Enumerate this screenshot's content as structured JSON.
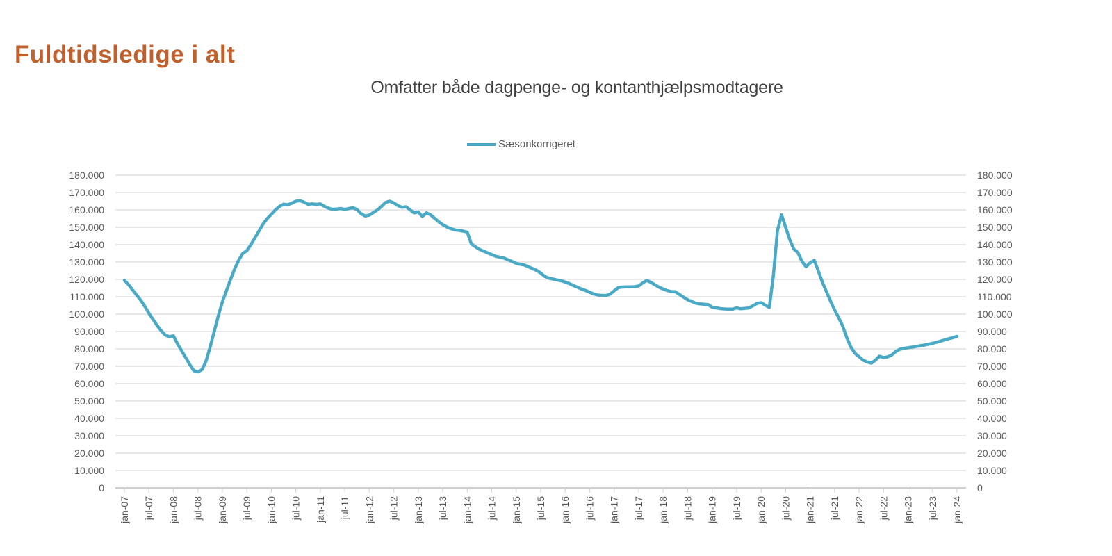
{
  "page": {
    "title": "Fuldtidsledige i alt"
  },
  "colors": {
    "title": "#C2602C",
    "subtitle": "#404040",
    "legend_text": "#595959",
    "axis_text": "#595959",
    "gridline": "#D9D9D9",
    "baseline": "#BFBFBF",
    "series_line": "#4AA9C5"
  },
  "chart_data": {
    "type": "line",
    "title": "Omfatter både dagpenge- og kontanthjælpsmodtagere",
    "legend_position": "top",
    "grid": true,
    "ylim": [
      0,
      180000
    ],
    "y_tick_step": 10000,
    "y_tick_labels": [
      "0",
      "10.000",
      "20.000",
      "30.000",
      "40.000",
      "50.000",
      "60.000",
      "70.000",
      "80.000",
      "90.000",
      "100.000",
      "110.000",
      "120.000",
      "130.000",
      "140.000",
      "150.000",
      "160.000",
      "170.000",
      "180.000"
    ],
    "x_tick_every_months": 6,
    "x_tick_labels": [
      "jan-07",
      "jul-07",
      "jan-08",
      "jul-08",
      "jan-09",
      "jul-09",
      "jan-10",
      "jul-10",
      "jan-11",
      "jul-11",
      "jan-12",
      "jul-12",
      "jan-13",
      "jul-13",
      "jan-14",
      "jul-14",
      "jan-15",
      "jul-15",
      "jan-16",
      "jul-16",
      "jan-17",
      "jul-17",
      "jan-18",
      "jul-18",
      "jan-19",
      "jul-19",
      "jan-20",
      "jul-20",
      "jan-21",
      "jul-21",
      "jan-22",
      "jul-22",
      "jan-23",
      "jul-23",
      "jan-24"
    ],
    "series": [
      {
        "name": "Sæsonkorrigeret",
        "color": "#4AA9C5",
        "x_start": "jan-07",
        "x_step": "1 month",
        "values": [
          119500,
          117000,
          114000,
          111000,
          108000,
          104500,
          100500,
          97000,
          93500,
          90500,
          88000,
          87000,
          87500,
          83000,
          79000,
          75000,
          71000,
          67500,
          66800,
          68000,
          73000,
          81000,
          90000,
          99000,
          107000,
          113500,
          120000,
          126000,
          131000,
          135000,
          136500,
          140000,
          144000,
          148000,
          152000,
          155000,
          157500,
          160000,
          162000,
          163300,
          163000,
          163800,
          165000,
          165300,
          164500,
          163200,
          163500,
          163200,
          163500,
          162000,
          161000,
          160300,
          160500,
          160800,
          160300,
          160800,
          161200,
          160200,
          157800,
          156500,
          157000,
          158500,
          160000,
          162000,
          164300,
          165000,
          164000,
          162500,
          161500,
          161800,
          160000,
          158200,
          158800,
          156200,
          158300,
          157200,
          155200,
          153200,
          151500,
          150200,
          149200,
          148500,
          148200,
          147800,
          147200,
          140500,
          138800,
          137300,
          136300,
          135300,
          134300,
          133300,
          132800,
          132300,
          131300,
          130300,
          129200,
          128700,
          128300,
          127200,
          126200,
          125200,
          123700,
          121700,
          120700,
          120200,
          119700,
          119200,
          118500,
          117600,
          116500,
          115500,
          114500,
          113600,
          112600,
          111600,
          111000,
          110800,
          110700,
          111500,
          113500,
          115300,
          115600,
          115700,
          115700,
          115800,
          116200,
          118000,
          119400,
          118300,
          116900,
          115500,
          114500,
          113600,
          113000,
          112900,
          111300,
          109800,
          108300,
          107300,
          106300,
          105900,
          105700,
          105500,
          104000,
          103600,
          103200,
          103000,
          102900,
          102900,
          103600,
          103100,
          103300,
          103600,
          104800,
          106200,
          106600,
          105200,
          103800,
          122000,
          148000,
          157200,
          150000,
          143000,
          137500,
          135500,
          130500,
          127300,
          129500,
          131000,
          125000,
          118500,
          113000,
          107500,
          102500,
          98000,
          93000,
          86500,
          81000,
          77500,
          75500,
          73500,
          72500,
          71800,
          73500,
          75800,
          75000,
          75400,
          76500,
          78500,
          79800,
          80300,
          80700,
          81000,
          81400,
          81800,
          82200,
          82700,
          83200,
          83800,
          84500,
          85200,
          85900,
          86500,
          87200
        ]
      }
    ]
  }
}
